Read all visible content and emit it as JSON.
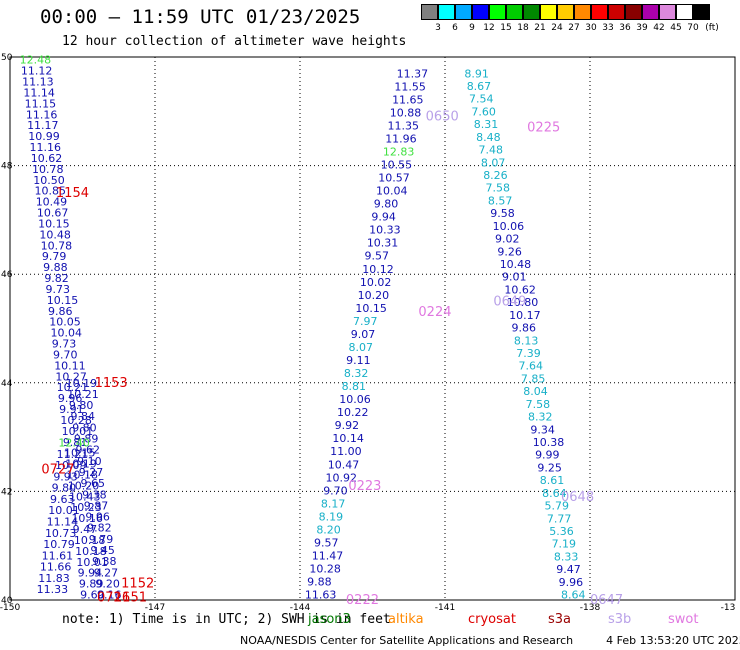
{
  "header": {
    "title": "00:00 — 11:59 UTC 01/23/2025",
    "subtitle": "12 hour collection of altimeter wave heights"
  },
  "legend": {
    "unit": "(ft)",
    "bins": [
      {
        "label": "3",
        "color": "#808080"
      },
      {
        "label": "6",
        "color": "#00ffff"
      },
      {
        "label": "9",
        "color": "#00aaff"
      },
      {
        "label": "12",
        "color": "#0000ff"
      },
      {
        "label": "15",
        "color": "#00ff00"
      },
      {
        "label": "18",
        "color": "#00cc00"
      },
      {
        "label": "21",
        "color": "#008800"
      },
      {
        "label": "24",
        "color": "#ffff00"
      },
      {
        "label": "27",
        "color": "#ffcc00"
      },
      {
        "label": "30",
        "color": "#ff8800"
      },
      {
        "label": "33",
        "color": "#ff0000"
      },
      {
        "label": "36",
        "color": "#cc0000"
      },
      {
        "label": "39",
        "color": "#880000"
      },
      {
        "label": "42",
        "color": "#aa00aa"
      },
      {
        "label": "45",
        "color": "#dd88dd"
      },
      {
        "label": "70",
        "color": "#ffffff"
      },
      {
        "label": "",
        "color": "#000000"
      }
    ]
  },
  "map": {
    "lon_range": [
      -150,
      -135
    ],
    "lat_range": [
      40,
      50
    ],
    "lon_ticks": [
      "-150",
      "-147",
      "-144",
      "-141",
      "-138",
      "-13"
    ],
    "lat_ticks": [
      "40",
      "42",
      "44",
      "46",
      "48",
      "50"
    ],
    "colors": {
      "blue": "#1010b0",
      "cyan": "#18b0c8",
      "green": "#40e040",
      "red": "#dd0000",
      "purple": "#b8a0e8",
      "pink": "#e078e0"
    },
    "tracks": [
      {
        "name": "left-track-a",
        "lat_start": 49.95,
        "lat_end": 40.1,
        "lon_start": -149.8,
        "lon_end": -148.55,
        "step": 0.2,
        "values": [
          "12.48",
          "11.12",
          "11.13",
          "11.14",
          "11.15",
          "11.16",
          "11.17",
          "10.99",
          "11.16",
          "10.62",
          "10.78",
          "10.50",
          "10.85",
          "10.49",
          "10.67",
          "10.15",
          "10.48",
          "10.78",
          "9.79",
          "9.88",
          "9.82",
          "9.73",
          "10.15",
          "9.86",
          "10.05",
          "10.04",
          "9.73",
          "9.70",
          "10.11",
          "10.27",
          "10.21",
          "9.96",
          "9.91",
          "10.28",
          "10.01",
          "9.81",
          "10.15",
          "10.19",
          "10.18",
          "10.20",
          "10.43",
          "10.23",
          "10.16",
          "9.47",
          "10.18",
          "10.18",
          "10.01",
          "9.94",
          "9.89",
          "9.60"
        ]
      },
      {
        "name": "left-track-b",
        "lat_start": 44.0,
        "lat_end": 40.1,
        "lon_start": -148.85,
        "lon_end": -148.2,
        "step": 0.2,
        "values": [
          "10.19",
          "10.21",
          "9.80",
          "9.84",
          "9.80",
          "9.89",
          "9.62",
          "9.10",
          "9.27",
          "9.65",
          "9.38",
          "9.87",
          "9.96",
          "9.82",
          "9.79",
          "9.45",
          "9.38",
          "9.27",
          "9.20",
          "9.16"
        ]
      },
      {
        "name": "left-offshoot",
        "lat_start": 42.9,
        "lat_end": 40.2,
        "lon_start": -149.0,
        "lon_end": -149.45,
        "step": 0.2,
        "values": [
          "12.40",
          "11.21",
          "10.09",
          "9.93",
          "9.80",
          "9.63",
          "10.01",
          "11.14",
          "10.73",
          "10.79",
          "11.61",
          "11.66",
          "11.83",
          "11.33"
        ]
      },
      {
        "name": "right-track-a",
        "lat_start": 49.7,
        "lat_end": 40.1,
        "lon_start": -142.0,
        "lon_end": -143.9,
        "step": 0.2,
        "values": [
          "11.37",
          "11.55",
          "11.65",
          "10.88",
          "11.35",
          "11.96",
          "12.83",
          "10.55",
          "10.57",
          "10.04",
          "9.80",
          "9.94",
          "10.33",
          "10.31",
          "9.57",
          "10.12",
          "10.02",
          "10.20",
          "10.15",
          "7.97",
          "9.07",
          "8.07",
          "9.11",
          "8.32",
          "8.81",
          "10.06",
          "10.22",
          "9.92",
          "10.14",
          "11.00",
          "10.47",
          "10.92",
          "9.70",
          "8.17",
          "8.19",
          "8.20",
          "9.57",
          "11.47",
          "10.28",
          "9.88",
          "11.63"
        ]
      },
      {
        "name": "right-track-b",
        "lat_start": 49.7,
        "lat_end": 40.1,
        "lon_start": -140.6,
        "lon_end": -138.6,
        "step": 0.2,
        "values": [
          "8.91",
          "8.67",
          "7.54",
          "7.60",
          "8.31",
          "8.48",
          "7.48",
          "8.07",
          "8.26",
          "7.58",
          "8.57",
          "9.58",
          "10.06",
          "9.02",
          "9.26",
          "10.48",
          "9.01",
          "10.62",
          "10.80",
          "10.17",
          "9.86",
          "8.13",
          "7.39",
          "7.64",
          "7.85",
          "8.04",
          "7.58",
          "8.32",
          "9.34",
          "10.38",
          "9.99",
          "9.25",
          "8.61",
          "8.64",
          "5.79",
          "7.77",
          "5.36",
          "7.19",
          "8.33",
          "9.47",
          "9.96",
          "8.64"
        ]
      }
    ],
    "time_labels": [
      {
        "text": "1154",
        "color": "red",
        "lat": 47.5,
        "lon": -149.05
      },
      {
        "text": "1153",
        "color": "red",
        "lat": 44.0,
        "lon": -148.25
      },
      {
        "text": "0727",
        "color": "red",
        "lat": 42.4,
        "lon": -149.35
      },
      {
        "text": "1152",
        "color": "red",
        "lat": 40.3,
        "lon": -147.7
      },
      {
        "text": "0726",
        "color": "red",
        "lat": 40.05,
        "lon": -148.2
      },
      {
        "text": "1151",
        "color": "red",
        "lat": 40.05,
        "lon": -147.85
      },
      {
        "text": "0650",
        "color": "purple",
        "lat": 48.9,
        "lon": -141.4
      },
      {
        "text": "0225",
        "color": "pink",
        "lat": 48.7,
        "lon": -139.3
      },
      {
        "text": "0224",
        "color": "pink",
        "lat": 45.3,
        "lon": -141.55
      },
      {
        "text": "0649",
        "color": "purple",
        "lat": 45.5,
        "lon": -140.0
      },
      {
        "text": "0223",
        "color": "pink",
        "lat": 42.1,
        "lon": -143.0
      },
      {
        "text": "0648",
        "color": "purple",
        "lat": 41.9,
        "lon": -138.6
      },
      {
        "text": "0222",
        "color": "pink",
        "lat": 40.0,
        "lon": -143.05
      },
      {
        "text": "0647",
        "color": "purple",
        "lat": 40.0,
        "lon": -138.0
      }
    ]
  },
  "footer": {
    "note": "note: 1) Time is in UTC; 2) SWH is in feet",
    "satellites": [
      {
        "name": "jason3",
        "color": "#007700"
      },
      {
        "name": "altika",
        "color": "#ff8800"
      },
      {
        "name": "cryosat",
        "color": "#dd0000"
      },
      {
        "name": "s3a",
        "color": "#990000"
      },
      {
        "name": "s3b",
        "color": "#b8a0e8"
      },
      {
        "name": "swot",
        "color": "#e078e0"
      }
    ],
    "credit": "NOAA/NESDIS Center for Satellite Applications and Research",
    "timestamp": "4 Feb 13:53:20 UTC 2025"
  }
}
